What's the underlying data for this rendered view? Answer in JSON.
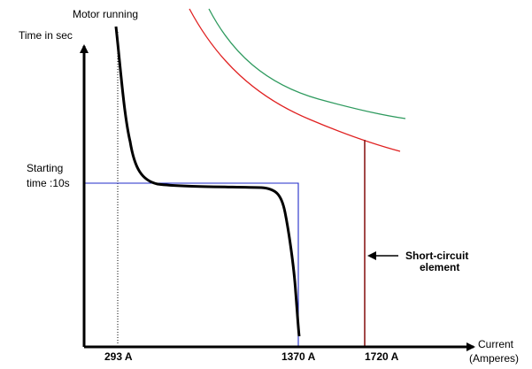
{
  "labels": {
    "motor_running": "Motor running",
    "y_axis": "Time in sec",
    "starting_line1": "Starting",
    "starting_line2": "time :10s",
    "short_circuit_line1": "Short-circuit",
    "short_circuit_line2": "element",
    "x_axis_line1": "Current",
    "x_axis_line2": "(Amperes)"
  },
  "ticks": {
    "t293": "293 A",
    "t1370": "1370 A",
    "t1720": "1720 A"
  },
  "colors": {
    "axis": "#000000",
    "motor_curve": "#000000",
    "starting_box": "#1f2bc8",
    "short_circuit_line": "#8b1a1a",
    "red_curve": "#e02020",
    "green_curve": "#2e9a5e",
    "dotted_line": "#000000"
  }
}
